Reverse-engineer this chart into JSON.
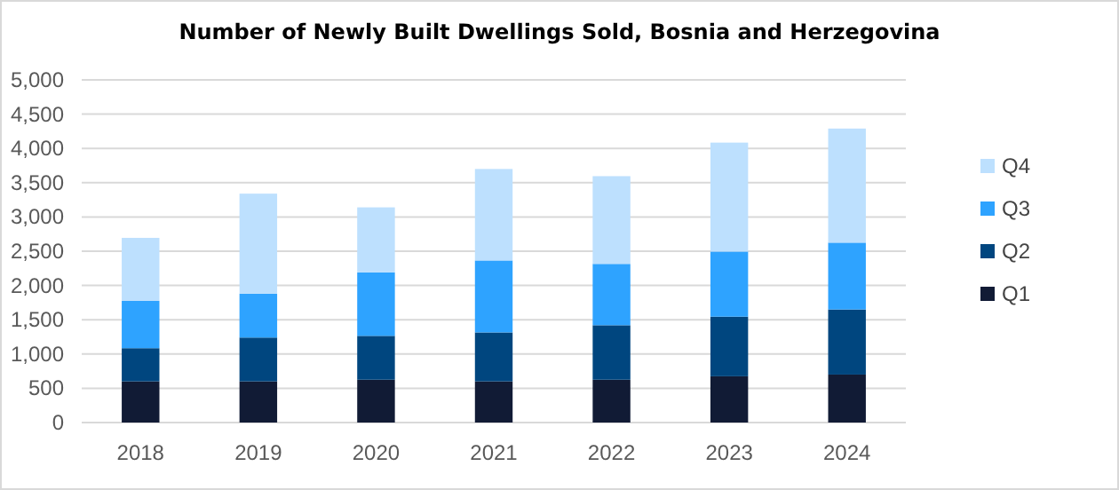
{
  "chart_data": {
    "type": "bar",
    "title": "Number of Newly Built Dwellings Sold, Bosnia and Herzegovina",
    "categories": [
      "2018",
      "2019",
      "2020",
      "2021",
      "2022",
      "2023",
      "2024"
    ],
    "stacked": true,
    "series": [
      {
        "name": "Q1",
        "color": "#111b35",
        "values": [
          600,
          600,
          625,
          600,
          625,
          675,
          700
        ]
      },
      {
        "name": "Q2",
        "color": "#00467f",
        "values": [
          485,
          640,
          640,
          715,
          795,
          870,
          950
        ]
      },
      {
        "name": "Q3",
        "color": "#2ea3ff",
        "values": [
          690,
          640,
          925,
          1050,
          895,
          950,
          975
        ]
      },
      {
        "name": "Q4",
        "color": "#bde0fe",
        "values": [
          920,
          1460,
          950,
          1335,
          1280,
          1590,
          1665
        ]
      }
    ],
    "ylim": [
      0,
      5000
    ],
    "yticks": [
      {
        "value": 0,
        "label": "0"
      },
      {
        "value": 500,
        "label": "500"
      },
      {
        "value": 1000,
        "label": "1,000"
      },
      {
        "value": 1500,
        "label": "1,500"
      },
      {
        "value": 2000,
        "label": "2,000"
      },
      {
        "value": 2500,
        "label": "2,500"
      },
      {
        "value": 3000,
        "label": "3,000"
      },
      {
        "value": 3500,
        "label": "3,500"
      },
      {
        "value": 4000,
        "label": "4,000"
      },
      {
        "value": 4500,
        "label": "4,500"
      },
      {
        "value": 5000,
        "label": "5,000"
      }
    ],
    "grid": "y",
    "legend": "right"
  }
}
